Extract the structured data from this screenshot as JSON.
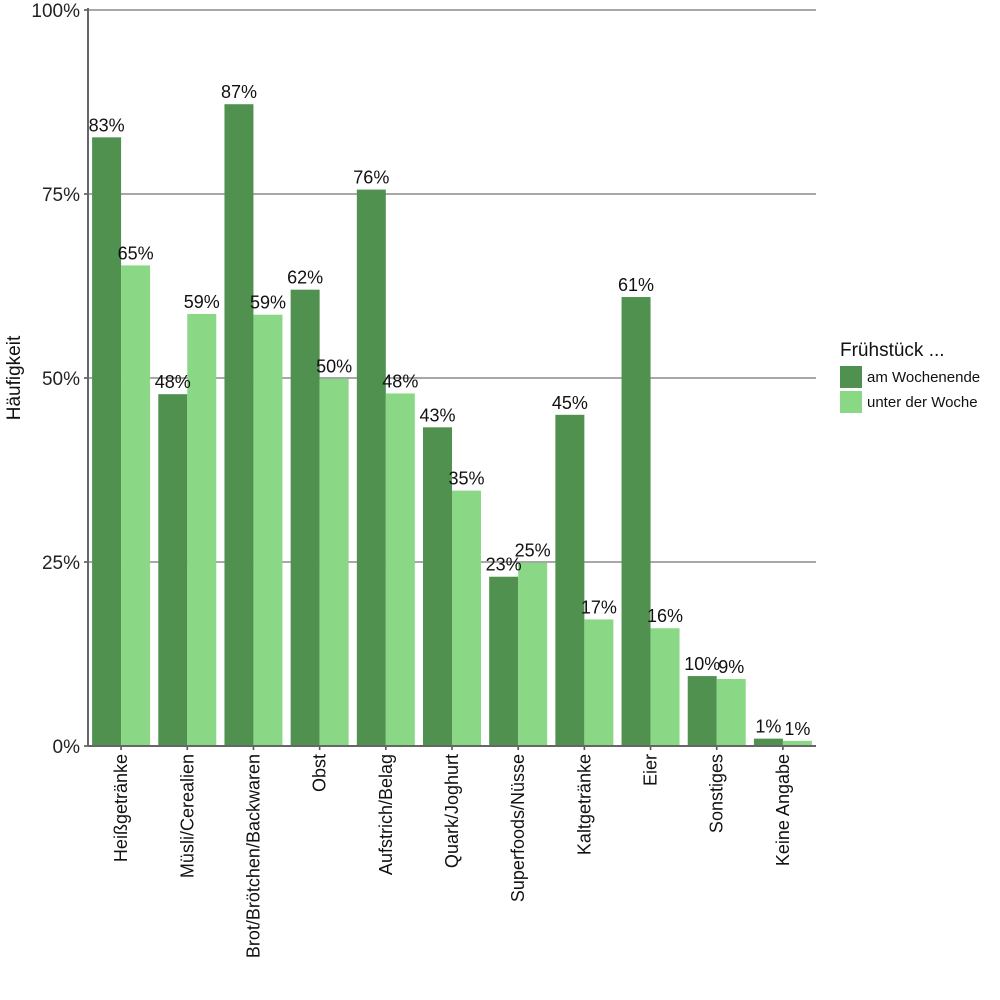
{
  "chart_data": {
    "type": "bar",
    "ylabel": "Häufigkeit",
    "ylim": [
      0,
      100
    ],
    "yticks": [
      0,
      25,
      50,
      75,
      100
    ],
    "ytick_labels": [
      "0%",
      "25%",
      "50%",
      "75%",
      "100%"
    ],
    "categories": [
      "Heißgetränke",
      "Müsli/Cerealien",
      "Brot/Brötchen/Backwaren",
      "Obst",
      "Aufstrich/Belag",
      "Quark/Joghurt",
      "Superfoods/Nüsse",
      "Kaltgetränke",
      "Eier",
      "Sonstiges",
      "Keine Angabe"
    ],
    "series": [
      {
        "name": "am Wochenende",
        "color": "#519150",
        "values": [
          82.7,
          47.8,
          87.2,
          62.0,
          75.6,
          43.3,
          23.0,
          45.0,
          61.0,
          9.5,
          1.0
        ],
        "labels": [
          "83%",
          "48%",
          "87%",
          "62%",
          "76%",
          "43%",
          "23%",
          "45%",
          "61%",
          "10%",
          "1%"
        ]
      },
      {
        "name": "unter der Woche",
        "color": "#8ad886",
        "values": [
          65.3,
          58.7,
          58.6,
          49.9,
          47.9,
          34.7,
          24.9,
          17.2,
          16.0,
          9.1,
          0.7
        ],
        "labels": [
          "65%",
          "59%",
          "59%",
          "50%",
          "48%",
          "35%",
          "25%",
          "17%",
          "16%",
          "9%",
          "1%"
        ]
      }
    ],
    "grid": true,
    "legend": {
      "title": "Frühstück ...",
      "position": "right"
    }
  }
}
